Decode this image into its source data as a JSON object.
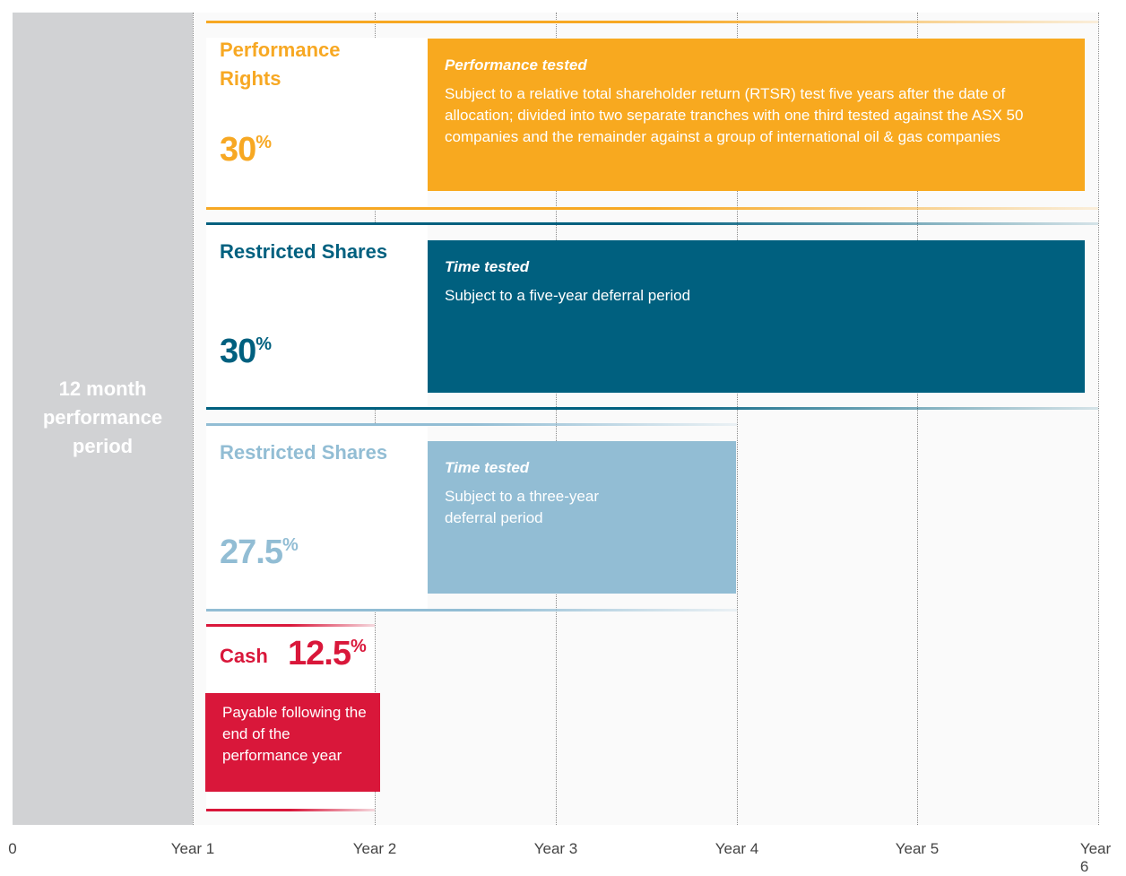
{
  "period_label": "12 month performance period",
  "axis": {
    "labels": [
      "0",
      "Year 1",
      "Year 2",
      "Year 3",
      "Year 4",
      "Year 5",
      "Year 6"
    ]
  },
  "components": [
    {
      "title": "Performance Rights",
      "percent": "30",
      "percent_sign": "%",
      "box_heading": "Performance tested",
      "box_text": "Subject to a relative total shareholder return (RTSR) test five years after the date of allocation; divided into two separate tranches with one third tested against the ASX 50 companies and the remainder against a group of international oil & gas companies"
    },
    {
      "title": "Restricted Shares",
      "percent": "30",
      "percent_sign": "%",
      "box_heading": "Time tested",
      "box_text": "Subject to a five-year deferral period"
    },
    {
      "title": "Restricted Shares",
      "percent": "27.5",
      "percent_sign": "%",
      "box_heading": "Time tested",
      "box_text": "Subject to a three-year deferral period"
    }
  ],
  "cash": {
    "title": "Cash",
    "percent": "12.5",
    "percent_sign": "%",
    "box_text": "Payable following the end of the performance year"
  }
}
